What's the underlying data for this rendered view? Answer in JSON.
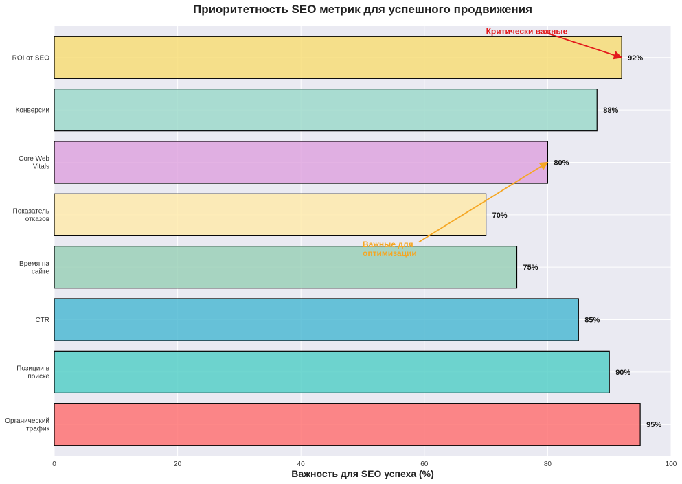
{
  "chart_data": {
    "type": "bar",
    "orientation": "horizontal",
    "title": "Приоритетность SEO метрик для успешного продвижения",
    "xlabel": "Важность для SEO успеха (%)",
    "ylabel": "",
    "xlim": [
      0,
      100
    ],
    "xticks": [
      "0",
      "20",
      "40",
      "60",
      "80",
      "100"
    ],
    "grid": true,
    "categories": [
      [
        "Органический",
        "трафик"
      ],
      [
        "Позиции в",
        "поиске"
      ],
      [
        "CTR"
      ],
      [
        "Время на",
        "сайте"
      ],
      [
        "Показатель",
        "отказов"
      ],
      [
        "Core Web",
        "Vitals"
      ],
      [
        "Конверсии"
      ],
      [
        "ROI от SEO"
      ]
    ],
    "values": [
      95,
      90,
      85,
      75,
      70,
      80,
      88,
      92
    ],
    "value_labels": [
      "95%",
      "90%",
      "85%",
      "75%",
      "70%",
      "80%",
      "88%",
      "92%"
    ],
    "colors": [
      "#FF6B6B",
      "#4ECDC4",
      "#45B7D1",
      "#96CEB4",
      "#FFEAA7",
      "#DDA0DD",
      "#98D8C8",
      "#F7DC6F"
    ],
    "annotations": [
      {
        "lines": [
          "Критически важные"
        ],
        "color": "#e31a1c",
        "text_at": [
          70,
          7.5
        ],
        "arrow_to": [
          92,
          7
        ]
      },
      {
        "lines": [
          "Важные для",
          "оптимизации"
        ],
        "color": "#f5a623",
        "text_at": [
          50,
          3.35
        ],
        "arrow_to": [
          80,
          5
        ]
      }
    ]
  }
}
